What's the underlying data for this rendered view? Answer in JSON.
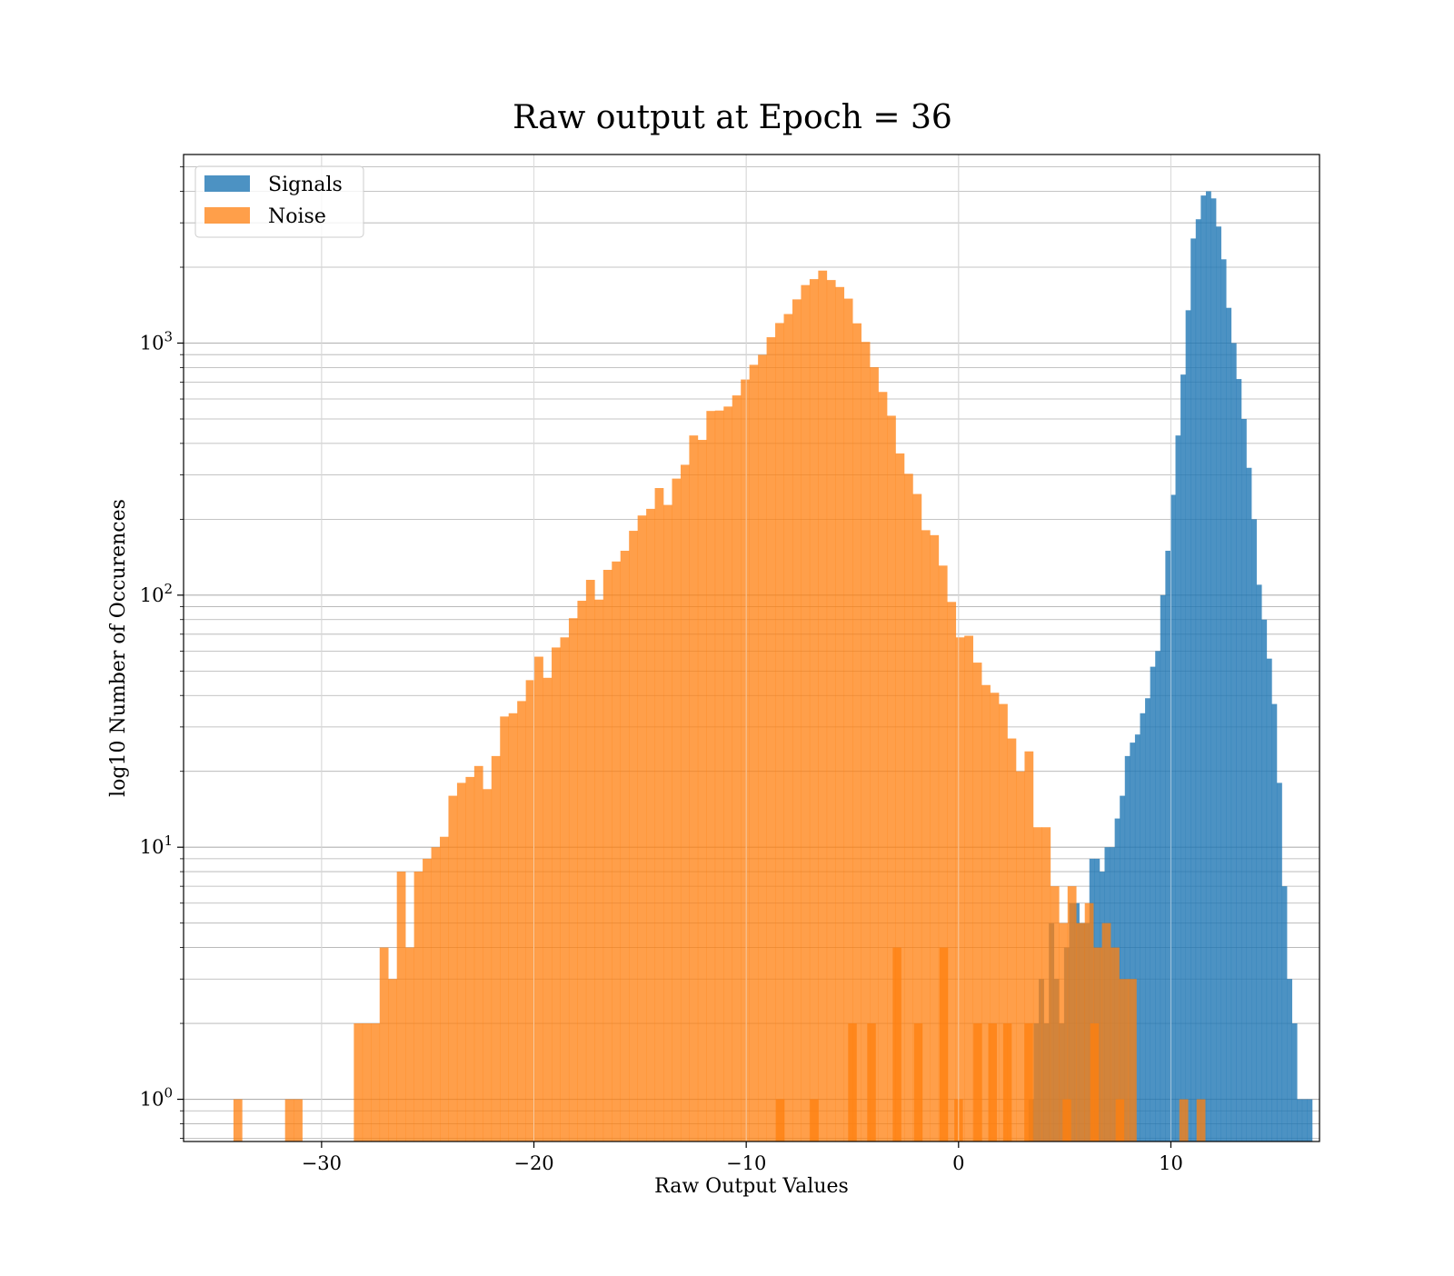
{
  "chart_data": {
    "type": "histogram",
    "title": "Raw output at Epoch = 36",
    "xlabel": "Raw Output Values",
    "ylabel": "log10 Number of Occurences",
    "xlim": [
      -36.5,
      17
    ],
    "ylim": [
      0.68,
      5600
    ],
    "yscale": "log",
    "grid": true,
    "legend_position": "upper-left",
    "x_ticks": [
      {
        "value": -30,
        "label": "−30"
      },
      {
        "value": -20,
        "label": "−20"
      },
      {
        "value": -10,
        "label": "−10"
      },
      {
        "value": 0,
        "label": "0"
      },
      {
        "value": 10,
        "label": "10"
      }
    ],
    "y_ticks": [
      {
        "value": 1,
        "base": "10",
        "exp": "0"
      },
      {
        "value": 10,
        "base": "10",
        "exp": "1"
      },
      {
        "value": 100,
        "base": "10",
        "exp": "2"
      },
      {
        "value": 1000,
        "base": "10",
        "exp": "3"
      }
    ],
    "series": [
      {
        "name": "Noise",
        "color": "#ff7f0e",
        "opacity": 0.75,
        "bin_start": -34.15,
        "bin_width": 0.405,
        "values": [
          1,
          0,
          0,
          0,
          0,
          0,
          1,
          1,
          0,
          0,
          0,
          0,
          0,
          0,
          2,
          2,
          2,
          4,
          3,
          8,
          4,
          8,
          9,
          10,
          11,
          16,
          18,
          19,
          21,
          17,
          23,
          33,
          34,
          38,
          46,
          57,
          47,
          62,
          68,
          81,
          95,
          115,
          96,
          126,
          136,
          150,
          180,
          207,
          220,
          266,
          228,
          290,
          329,
          430,
          413,
          538,
          540,
          560,
          620,
          717,
          820,
          898,
          1055,
          1201,
          1304,
          1491,
          1699,
          1794,
          1939,
          1779,
          1669,
          1501,
          1198,
          1011,
          802,
          640,
          515,
          365,
          303,
          252,
          181,
          173,
          131,
          94,
          68,
          69,
          54,
          44,
          41,
          37,
          27,
          20,
          24,
          12,
          12,
          7,
          5,
          7,
          5,
          6,
          4,
          5,
          4,
          3,
          3,
          0,
          0,
          0,
          0,
          0,
          1,
          0,
          1
        ],
        "right_tail": [
          {
            "x": -8.6,
            "value": 1
          },
          {
            "x": -7.0,
            "value": 1
          },
          {
            "x": -5.2,
            "value": 2
          },
          {
            "x": -4.3,
            "value": 2
          },
          {
            "x": -3.1,
            "value": 4
          },
          {
            "x": -2.1,
            "value": 2
          },
          {
            "x": -0.9,
            "value": 4
          },
          {
            "x": -0.2,
            "value": 1
          },
          {
            "x": 0.7,
            "value": 2
          },
          {
            "x": 1.4,
            "value": 2
          },
          {
            "x": 2.1,
            "value": 2
          },
          {
            "x": 3.1,
            "value": 2
          },
          {
            "x": 4.9,
            "value": 1
          },
          {
            "x": 6.2,
            "value": 2
          },
          {
            "x": 7.4,
            "value": 1
          }
        ]
      },
      {
        "name": "Signals",
        "color": "#1f77b4",
        "opacity": 0.8,
        "bin_start": 3.3,
        "bin_width": 0.2385,
        "values": [
          1,
          2,
          3,
          2,
          5,
          3,
          2,
          4,
          6,
          6,
          5,
          5,
          9,
          9,
          8,
          10,
          10,
          13,
          16,
          23,
          26,
          28,
          34,
          39,
          52,
          60,
          100,
          150,
          250,
          430,
          750,
          1350,
          2600,
          3100,
          3850,
          4000,
          3750,
          2900,
          2150,
          1380,
          1000,
          720,
          500,
          320,
          200,
          110,
          80,
          56,
          37,
          18,
          7,
          3,
          2,
          1,
          1,
          1,
          0,
          0,
          0
        ]
      }
    ]
  }
}
